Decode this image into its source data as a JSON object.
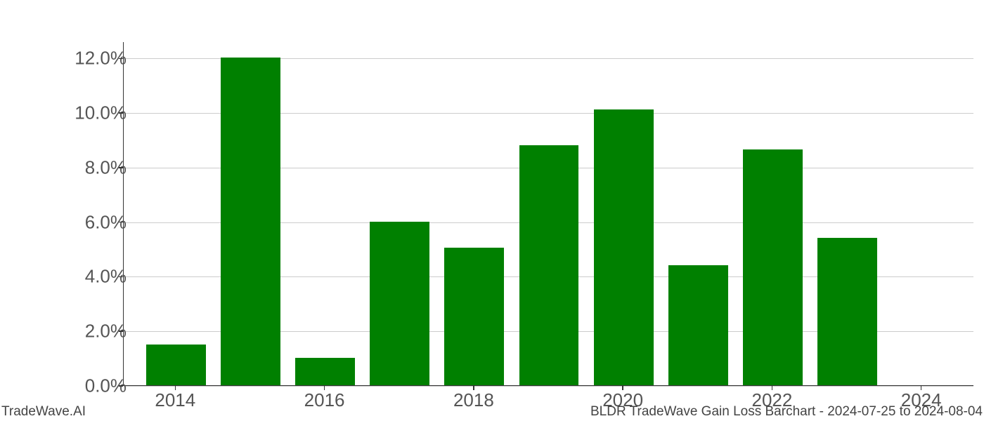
{
  "chart": {
    "type": "bar",
    "years": [
      2014,
      2015,
      2016,
      2017,
      2018,
      2019,
      2020,
      2021,
      2022,
      2023,
      2024
    ],
    "values": [
      1.5,
      12.0,
      1.0,
      6.0,
      5.05,
      8.8,
      10.1,
      4.4,
      8.65,
      5.4,
      0.0
    ],
    "bar_color": "#008000",
    "background_color": "#ffffff",
    "grid_color": "#cccccc",
    "axis_color": "#333333",
    "tick_label_color": "#555555",
    "ylim_min": 0,
    "ylim_max": 12.6,
    "yticks": [
      0,
      2,
      4,
      6,
      8,
      10,
      12
    ],
    "ytick_labels": [
      "0.0%",
      "2.0%",
      "4.0%",
      "6.0%",
      "8.0%",
      "10.0%",
      "12.0%"
    ],
    "xticks_shown": [
      2014,
      2016,
      2018,
      2020,
      2022,
      2024
    ],
    "xtick_labels": [
      "2014",
      "2016",
      "2018",
      "2020",
      "2022",
      "2024"
    ],
    "bar_width_ratio": 0.8,
    "tick_fontsize": 26,
    "footer_fontsize": 19,
    "x_domain_min": 2013.3,
    "x_domain_max": 2024.7
  },
  "footer": {
    "left": "TradeWave.AI",
    "right": "BLDR TradeWave Gain Loss Barchart - 2024-07-25 to 2024-08-04"
  }
}
